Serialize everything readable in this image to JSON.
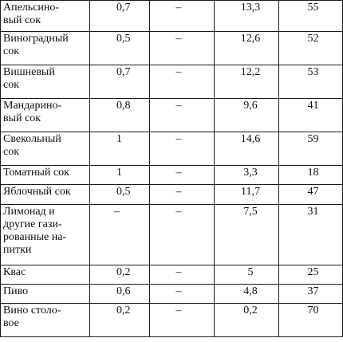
{
  "rows": [
    {
      "name": "Апельсино-\nвый сок",
      "protein": "0,7",
      "fat": "–",
      "carbs": "13,3",
      "kcal": "55"
    },
    {
      "name": "Виноградный\nсок",
      "protein": "0,5",
      "fat": "–",
      "carbs": "12,6",
      "kcal": "52"
    },
    {
      "name": "Вишневый\nсок",
      "protein": "0,7",
      "fat": "–",
      "carbs": "12,2",
      "kcal": "53"
    },
    {
      "name": "Мандарино-\nвый сок",
      "protein": "0,8",
      "fat": "–",
      "carbs": "9,6",
      "kcal": "41"
    },
    {
      "name": "Свекольный\nсок",
      "protein": "1",
      "fat": "–",
      "carbs": "14,6",
      "kcal": "59"
    },
    {
      "name": "Томатный сок",
      "protein": "1",
      "fat": "–",
      "carbs": "3,3",
      "kcal": "18"
    },
    {
      "name": "Яблочный сок",
      "protein": "0,5",
      "fat": "–",
      "carbs": "11,7",
      "kcal": "47"
    },
    {
      "name": "Лимонад и\nдругие гази-\nрованные на-\nпитки",
      "protein": "–",
      "fat": "–",
      "carbs": "7,5",
      "kcal": "31"
    },
    {
      "name": "Квас",
      "protein": "0,2",
      "fat": "–",
      "carbs": "5",
      "kcal": "25"
    },
    {
      "name": "Пиво",
      "protein": "0,6",
      "fat": "–",
      "carbs": "4,8",
      "kcal": "37"
    },
    {
      "name": "Вино столо-\nвое",
      "protein": "0,2",
      "fat": "–",
      "carbs": "0,2",
      "kcal": "70"
    }
  ]
}
